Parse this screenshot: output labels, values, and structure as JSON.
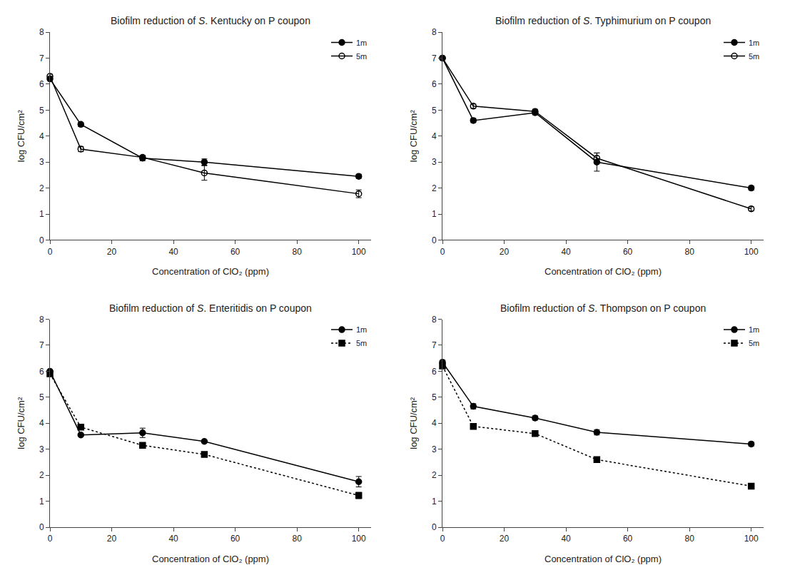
{
  "chart_data": [
    {
      "type": "line",
      "title": "Biofilm reduction of S. Kentucky on P coupon",
      "xlabel": "Concentration of ClO₂ (ppm)",
      "ylabel": "log CFU/cm²",
      "x": [
        0,
        10,
        30,
        50,
        100
      ],
      "series": [
        {
          "name": "1m",
          "color": "black",
          "marker": "circle",
          "line_style": "solid",
          "values": [
            6.2,
            4.45,
            3.15,
            3.0,
            2.45
          ],
          "errors": [
            0.1,
            0.08,
            0.1,
            0.12,
            0.08
          ]
        },
        {
          "name": "5m",
          "color": "black",
          "marker": "circle-open",
          "line_style": "solid",
          "values": [
            6.3,
            3.5,
            3.18,
            2.58,
            1.78
          ],
          "errors": [
            0.08,
            0.1,
            0.08,
            0.28,
            0.15
          ]
        }
      ],
      "xlim": [
        0,
        104
      ],
      "ylim": [
        0,
        8
      ],
      "xticks": [
        0,
        20,
        40,
        60,
        80,
        100
      ],
      "yticks": [
        0,
        1,
        2,
        3,
        4,
        5,
        6,
        7,
        8
      ],
      "grid": false,
      "legend": "upper right"
    },
    {
      "type": "line",
      "title": "Biofilm reduction of S. Typhimurium on P coupon",
      "xlabel": "Concentration of ClO₂ (ppm)",
      "ylabel": "log CFU/cm²",
      "x": [
        0,
        10,
        30,
        50,
        100
      ],
      "series": [
        {
          "name": "1m",
          "color": "black",
          "marker": "circle",
          "line_style": "solid",
          "values": [
            7.0,
            4.6,
            4.9,
            3.0,
            2.0
          ],
          "errors": [
            0.05,
            0.08,
            0.08,
            0.35,
            0.08
          ]
        },
        {
          "name": "5m",
          "color": "black",
          "marker": "circle-open",
          "line_style": "solid",
          "values": [
            7.0,
            5.15,
            4.95,
            3.15,
            1.2
          ],
          "errors": [
            0.05,
            0.08,
            0.08,
            0.2,
            0.08
          ]
        }
      ],
      "xlim": [
        0,
        104
      ],
      "ylim": [
        0,
        8
      ],
      "xticks": [
        0,
        20,
        40,
        60,
        80,
        100
      ],
      "yticks": [
        0,
        1,
        2,
        3,
        4,
        5,
        6,
        7,
        8
      ],
      "grid": false,
      "legend": "upper right"
    },
    {
      "type": "line",
      "title": "Biofilm reduction of S. Enteritidis on P coupon",
      "xlabel": "Concentration of ClO₂ (ppm)",
      "ylabel": "log CFU/cm²",
      "x": [
        0,
        10,
        30,
        50,
        100
      ],
      "series": [
        {
          "name": "1m",
          "color": "black",
          "marker": "circle",
          "line_style": "solid",
          "values": [
            6.0,
            3.55,
            3.63,
            3.3,
            1.75
          ],
          "errors": [
            0.05,
            0.05,
            0.18,
            0.05,
            0.2
          ]
        },
        {
          "name": "5m",
          "color": "black",
          "marker": "square",
          "line_style": "dotted",
          "values": [
            5.9,
            3.85,
            3.15,
            2.8,
            1.22
          ],
          "errors": [
            0.05,
            0.05,
            0.1,
            0.08,
            0.12
          ]
        }
      ],
      "xlim": [
        0,
        104
      ],
      "ylim": [
        0,
        8
      ],
      "xticks": [
        0,
        20,
        40,
        60,
        80,
        100
      ],
      "yticks": [
        0,
        1,
        2,
        3,
        4,
        5,
        6,
        7,
        8
      ],
      "grid": false,
      "legend": "upper right"
    },
    {
      "type": "line",
      "title": "Biofilm reduction of S. Thompson on P coupon",
      "xlabel": "Concentration of ClO₂ (ppm)",
      "ylabel": "log CFU/cm²",
      "x": [
        0,
        10,
        30,
        50,
        100
      ],
      "series": [
        {
          "name": "1m",
          "color": "black",
          "marker": "circle",
          "line_style": "solid",
          "values": [
            6.35,
            4.65,
            4.2,
            3.65,
            3.2
          ],
          "errors": [
            0.08,
            0.1,
            0.08,
            0.1,
            0.08
          ]
        },
        {
          "name": "5m",
          "color": "black",
          "marker": "square",
          "line_style": "dotted",
          "values": [
            6.2,
            3.88,
            3.6,
            2.6,
            1.58
          ],
          "errors": [
            0.08,
            0.05,
            0.05,
            0.08,
            0.08
          ]
        }
      ],
      "xlim": [
        0,
        104
      ],
      "ylim": [
        0,
        8
      ],
      "xticks": [
        0,
        20,
        40,
        60,
        80,
        100
      ],
      "yticks": [
        0,
        1,
        2,
        3,
        4,
        5,
        6,
        7,
        8
      ],
      "grid": false,
      "legend": "upper right"
    }
  ]
}
